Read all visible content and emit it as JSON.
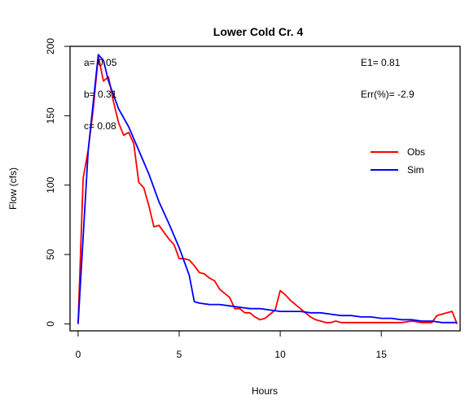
{
  "chart_data": {
    "type": "line",
    "title": "Lower Cold Cr. 4",
    "xlabel": "Hours",
    "ylabel": "Flow (cfs)",
    "xlim": [
      -0.4,
      18.9
    ],
    "ylim": [
      -5,
      200
    ],
    "xticks": [
      "0",
      "5",
      "10",
      "15"
    ],
    "yticks": [
      "0",
      "50",
      "100",
      "150",
      "200"
    ],
    "legend_position": "right",
    "annotations": {
      "a": "a= 0.05",
      "b": "b= 0.31",
      "c": "c= 0.08",
      "e1": "E1= 0.81",
      "err": "Err(%)= -2.9"
    },
    "series": [
      {
        "name": "Obs",
        "color": "#ff0000",
        "points": [
          [
            0,
            0
          ],
          [
            0.25,
            105
          ],
          [
            0.5,
            125
          ],
          [
            0.75,
            155
          ],
          [
            1.0,
            193
          ],
          [
            1.25,
            175
          ],
          [
            1.5,
            178
          ],
          [
            1.75,
            160
          ],
          [
            2.0,
            145
          ],
          [
            2.25,
            136
          ],
          [
            2.5,
            138
          ],
          [
            2.75,
            130
          ],
          [
            3.0,
            102
          ],
          [
            3.25,
            98
          ],
          [
            3.5,
            85
          ],
          [
            3.75,
            70
          ],
          [
            4.0,
            71
          ],
          [
            4.25,
            66
          ],
          [
            4.5,
            61
          ],
          [
            4.75,
            57
          ],
          [
            5.0,
            47
          ],
          [
            5.25,
            47
          ],
          [
            5.5,
            46
          ],
          [
            5.75,
            42
          ],
          [
            6.0,
            37
          ],
          [
            6.25,
            36
          ],
          [
            6.5,
            33
          ],
          [
            6.75,
            31
          ],
          [
            7.0,
            25
          ],
          [
            7.25,
            22
          ],
          [
            7.5,
            19
          ],
          [
            7.75,
            11
          ],
          [
            8.0,
            11
          ],
          [
            8.25,
            8
          ],
          [
            8.5,
            8
          ],
          [
            8.75,
            5
          ],
          [
            9.0,
            3
          ],
          [
            9.25,
            4
          ],
          [
            9.5,
            7
          ],
          [
            9.75,
            10
          ],
          [
            10.0,
            24
          ],
          [
            10.25,
            21
          ],
          [
            10.5,
            17
          ],
          [
            10.75,
            14
          ],
          [
            11.0,
            11
          ],
          [
            11.25,
            8
          ],
          [
            11.5,
            5
          ],
          [
            11.75,
            3
          ],
          [
            12.0,
            2
          ],
          [
            12.25,
            1
          ],
          [
            12.5,
            1
          ],
          [
            12.75,
            2
          ],
          [
            13.0,
            1
          ],
          [
            13.5,
            1
          ],
          [
            14.0,
            1
          ],
          [
            15.0,
            1
          ],
          [
            16.0,
            1
          ],
          [
            16.5,
            2
          ],
          [
            17.0,
            1
          ],
          [
            17.5,
            1
          ],
          [
            17.75,
            6
          ],
          [
            18.0,
            7
          ],
          [
            18.25,
            8
          ],
          [
            18.5,
            9
          ],
          [
            18.75,
            0
          ]
        ]
      },
      {
        "name": "Sim",
        "color": "#0000ff",
        "points": [
          [
            0,
            0
          ],
          [
            0.5,
            125
          ],
          [
            1.0,
            194
          ],
          [
            1.25,
            190
          ],
          [
            1.5,
            175
          ],
          [
            1.75,
            165
          ],
          [
            2.0,
            155
          ],
          [
            2.5,
            142
          ],
          [
            3.0,
            125
          ],
          [
            3.5,
            108
          ],
          [
            4.0,
            88
          ],
          [
            4.5,
            72
          ],
          [
            5.0,
            55
          ],
          [
            5.5,
            35
          ],
          [
            5.75,
            16
          ],
          [
            6.0,
            15
          ],
          [
            6.5,
            14
          ],
          [
            7.0,
            14
          ],
          [
            7.5,
            13
          ],
          [
            8.0,
            12
          ],
          [
            8.5,
            11
          ],
          [
            9.0,
            11
          ],
          [
            9.5,
            10
          ],
          [
            10.0,
            9
          ],
          [
            10.5,
            9
          ],
          [
            11.0,
            9
          ],
          [
            11.5,
            8
          ],
          [
            12.0,
            8
          ],
          [
            12.5,
            7
          ],
          [
            13.0,
            6
          ],
          [
            13.5,
            6
          ],
          [
            14.0,
            5
          ],
          [
            14.5,
            5
          ],
          [
            15.0,
            4
          ],
          [
            15.5,
            4
          ],
          [
            16.0,
            3
          ],
          [
            16.5,
            3
          ],
          [
            17.0,
            2
          ],
          [
            17.5,
            2
          ],
          [
            18.0,
            1
          ],
          [
            18.5,
            1
          ],
          [
            18.75,
            1
          ]
        ]
      }
    ]
  }
}
